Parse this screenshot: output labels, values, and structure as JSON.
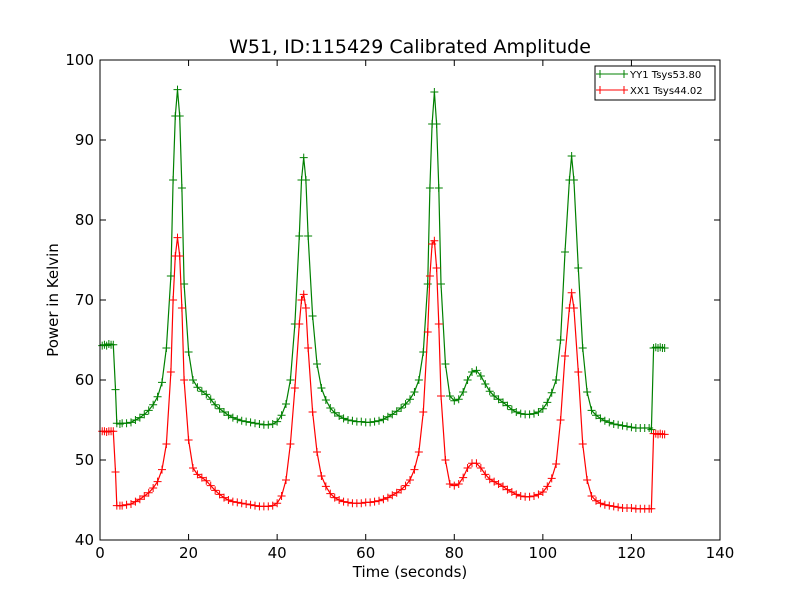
{
  "chart_data": {
    "type": "line",
    "title": "W51, ID:115429 Calibrated Amplitude",
    "xlabel": "Time (seconds)",
    "ylabel": "Power in Kelvin",
    "xlim": [
      0,
      140
    ],
    "ylim": [
      40,
      100
    ],
    "xticks": [
      "0",
      "20",
      "40",
      "60",
      "80",
      "100",
      "120",
      "140"
    ],
    "yticks": [
      "40",
      "50",
      "60",
      "70",
      "80",
      "90",
      "100"
    ],
    "grid": false,
    "legend_position": "top-right",
    "marker": "+",
    "series": [
      {
        "name": "YY1 Tsys53.80",
        "color": "#008000",
        "points": [
          [
            0.5,
            64.3
          ],
          [
            1,
            64.4
          ],
          [
            1.5,
            64.3
          ],
          [
            2,
            64.5
          ],
          [
            2.5,
            64.4
          ],
          [
            3,
            64.4
          ],
          [
            3.5,
            58.8
          ],
          [
            3.8,
            54.6
          ],
          [
            4.5,
            54.5
          ],
          [
            5,
            54.6
          ],
          [
            6,
            54.6
          ],
          [
            7,
            54.7
          ],
          [
            8,
            55.0
          ],
          [
            9,
            55.3
          ],
          [
            10,
            55.7
          ],
          [
            11,
            56.2
          ],
          [
            12,
            56.9
          ],
          [
            13,
            57.9
          ],
          [
            14,
            59.7
          ],
          [
            15,
            64.0
          ],
          [
            16,
            73.0
          ],
          [
            16.5,
            85.0
          ],
          [
            17,
            93.0
          ],
          [
            17.5,
            96.3
          ],
          [
            18,
            93.0
          ],
          [
            18.5,
            84.0
          ],
          [
            19,
            72.0
          ],
          [
            20,
            63.5
          ],
          [
            21,
            60.0
          ],
          [
            22,
            59.1
          ],
          [
            23,
            58.6
          ],
          [
            24,
            58.2
          ],
          [
            25,
            57.6
          ],
          [
            26,
            56.9
          ],
          [
            27,
            56.4
          ],
          [
            28,
            56.0
          ],
          [
            29,
            55.6
          ],
          [
            30,
            55.3
          ],
          [
            31,
            55.1
          ],
          [
            32,
            54.9
          ],
          [
            33,
            54.8
          ],
          [
            34,
            54.7
          ],
          [
            35,
            54.6
          ],
          [
            36,
            54.5
          ],
          [
            37,
            54.4
          ],
          [
            38,
            54.4
          ],
          [
            39,
            54.5
          ],
          [
            40,
            54.8
          ],
          [
            41,
            55.6
          ],
          [
            42,
            57.0
          ],
          [
            43,
            60.0
          ],
          [
            44,
            67.0
          ],
          [
            45,
            78.0
          ],
          [
            45.5,
            85.0
          ],
          [
            46,
            87.8
          ],
          [
            46.5,
            85.0
          ],
          [
            47,
            78.0
          ],
          [
            48,
            68.0
          ],
          [
            49,
            62.0
          ],
          [
            50,
            59.0
          ],
          [
            51,
            57.5
          ],
          [
            52,
            56.5
          ],
          [
            53,
            55.9
          ],
          [
            54,
            55.5
          ],
          [
            55,
            55.2
          ],
          [
            56,
            55.0
          ],
          [
            57,
            54.9
          ],
          [
            58,
            54.8
          ],
          [
            59,
            54.8
          ],
          [
            60,
            54.7
          ],
          [
            61,
            54.7
          ],
          [
            62,
            54.8
          ],
          [
            63,
            54.9
          ],
          [
            64,
            55.1
          ],
          [
            65,
            55.4
          ],
          [
            66,
            55.7
          ],
          [
            67,
            56.1
          ],
          [
            68,
            56.5
          ],
          [
            69,
            57.0
          ],
          [
            70,
            57.6
          ],
          [
            71,
            58.5
          ],
          [
            72,
            60.0
          ],
          [
            73,
            63.5
          ],
          [
            74,
            72.0
          ],
          [
            74.5,
            84.0
          ],
          [
            75,
            92.0
          ],
          [
            75.5,
            96.0
          ],
          [
            76,
            92.0
          ],
          [
            76.5,
            84.0
          ],
          [
            77,
            72.0
          ],
          [
            78,
            62.0
          ],
          [
            79,
            58.0
          ],
          [
            80,
            57.4
          ],
          [
            81,
            57.6
          ],
          [
            82,
            58.5
          ],
          [
            83,
            60.0
          ],
          [
            84,
            61.0
          ],
          [
            85,
            61.2
          ],
          [
            86,
            60.5
          ],
          [
            87,
            59.5
          ],
          [
            88,
            58.6
          ],
          [
            89,
            58.0
          ],
          [
            90,
            57.6
          ],
          [
            91,
            57.2
          ],
          [
            92,
            56.8
          ],
          [
            93,
            56.3
          ],
          [
            94,
            56.0
          ],
          [
            95,
            55.8
          ],
          [
            96,
            55.7
          ],
          [
            97,
            55.7
          ],
          [
            98,
            55.8
          ],
          [
            99,
            56.0
          ],
          [
            100,
            56.4
          ],
          [
            101,
            57.2
          ],
          [
            102,
            58.4
          ],
          [
            103,
            60.0
          ],
          [
            104,
            65.0
          ],
          [
            105,
            76.0
          ],
          [
            106,
            85.0
          ],
          [
            106.5,
            88.0
          ],
          [
            107,
            85.0
          ],
          [
            108,
            74.0
          ],
          [
            109,
            64.0
          ],
          [
            110,
            58.5
          ],
          [
            111,
            56.2
          ],
          [
            112,
            55.6
          ],
          [
            113,
            55.2
          ],
          [
            114,
            54.9
          ],
          [
            115,
            54.7
          ],
          [
            116,
            54.5
          ],
          [
            117,
            54.4
          ],
          [
            118,
            54.3
          ],
          [
            119,
            54.2
          ],
          [
            120,
            54.1
          ],
          [
            121,
            54.0
          ],
          [
            122,
            54.0
          ],
          [
            123,
            54.0
          ],
          [
            124,
            54.0
          ],
          [
            124.5,
            53.8
          ],
          [
            125,
            64.0
          ],
          [
            125.5,
            64.1
          ],
          [
            126,
            64.0
          ],
          [
            126.5,
            64.1
          ],
          [
            127,
            64.0
          ],
          [
            127.5,
            64.0
          ]
        ]
      },
      {
        "name": "XX1 Tsys44.02",
        "color": "#ff0000",
        "points": [
          [
            0.5,
            53.6
          ],
          [
            1,
            53.6
          ],
          [
            1.5,
            53.5
          ],
          [
            2,
            53.6
          ],
          [
            2.5,
            53.6
          ],
          [
            3,
            53.6
          ],
          [
            3.5,
            48.5
          ],
          [
            3.8,
            44.3
          ],
          [
            4.5,
            44.3
          ],
          [
            5,
            44.3
          ],
          [
            6,
            44.4
          ],
          [
            7,
            44.5
          ],
          [
            8,
            44.8
          ],
          [
            9,
            45.1
          ],
          [
            10,
            45.5
          ],
          [
            11,
            45.9
          ],
          [
            12,
            46.5
          ],
          [
            13,
            47.3
          ],
          [
            14,
            48.8
          ],
          [
            15,
            52.0
          ],
          [
            16,
            61.0
          ],
          [
            16.5,
            70.0
          ],
          [
            17,
            75.5
          ],
          [
            17.5,
            77.8
          ],
          [
            18,
            75.5
          ],
          [
            18.5,
            69.0
          ],
          [
            19,
            60.0
          ],
          [
            20,
            52.5
          ],
          [
            21,
            49.0
          ],
          [
            22,
            48.2
          ],
          [
            23,
            47.8
          ],
          [
            24,
            47.4
          ],
          [
            25,
            46.8
          ],
          [
            26,
            46.2
          ],
          [
            27,
            45.7
          ],
          [
            28,
            45.3
          ],
          [
            29,
            45.0
          ],
          [
            30,
            44.8
          ],
          [
            31,
            44.7
          ],
          [
            32,
            44.6
          ],
          [
            33,
            44.5
          ],
          [
            34,
            44.4
          ],
          [
            35,
            44.3
          ],
          [
            36,
            44.2
          ],
          [
            37,
            44.2
          ],
          [
            38,
            44.2
          ],
          [
            39,
            44.3
          ],
          [
            40,
            44.6
          ],
          [
            41,
            45.5
          ],
          [
            42,
            47.5
          ],
          [
            43,
            52.0
          ],
          [
            44,
            59.0
          ],
          [
            45,
            67.0
          ],
          [
            45.5,
            70.0
          ],
          [
            46,
            70.7
          ],
          [
            46.5,
            69.0
          ],
          [
            47,
            64.0
          ],
          [
            48,
            56.0
          ],
          [
            49,
            51.0
          ],
          [
            50,
            48.0
          ],
          [
            51,
            46.7
          ],
          [
            52,
            45.8
          ],
          [
            53,
            45.3
          ],
          [
            54,
            45.0
          ],
          [
            55,
            44.8
          ],
          [
            56,
            44.7
          ],
          [
            57,
            44.6
          ],
          [
            58,
            44.6
          ],
          [
            59,
            44.6
          ],
          [
            60,
            44.7
          ],
          [
            61,
            44.7
          ],
          [
            62,
            44.8
          ],
          [
            63,
            44.9
          ],
          [
            64,
            45.1
          ],
          [
            65,
            45.3
          ],
          [
            66,
            45.6
          ],
          [
            67,
            45.9
          ],
          [
            68,
            46.3
          ],
          [
            69,
            46.8
          ],
          [
            70,
            47.5
          ],
          [
            71,
            48.8
          ],
          [
            72,
            51.0
          ],
          [
            73,
            56.0
          ],
          [
            74,
            66.0
          ],
          [
            74.5,
            73.0
          ],
          [
            75,
            77.0
          ],
          [
            75.5,
            77.4
          ],
          [
            76,
            74.0
          ],
          [
            76.5,
            67.0
          ],
          [
            77,
            58.0
          ],
          [
            78,
            50.0
          ],
          [
            79,
            47.0
          ],
          [
            80,
            46.8
          ],
          [
            81,
            47.0
          ],
          [
            82,
            47.8
          ],
          [
            83,
            49.0
          ],
          [
            84,
            49.6
          ],
          [
            85,
            49.6
          ],
          [
            86,
            49.0
          ],
          [
            87,
            48.2
          ],
          [
            88,
            47.6
          ],
          [
            89,
            47.3
          ],
          [
            90,
            47.0
          ],
          [
            91,
            46.7
          ],
          [
            92,
            46.3
          ],
          [
            93,
            46.0
          ],
          [
            94,
            45.7
          ],
          [
            95,
            45.5
          ],
          [
            96,
            45.4
          ],
          [
            97,
            45.4
          ],
          [
            98,
            45.5
          ],
          [
            99,
            45.7
          ],
          [
            100,
            46.0
          ],
          [
            101,
            46.7
          ],
          [
            102,
            47.7
          ],
          [
            103,
            49.5
          ],
          [
            104,
            55.0
          ],
          [
            105,
            63.0
          ],
          [
            106,
            69.0
          ],
          [
            106.5,
            70.9
          ],
          [
            107,
            69.0
          ],
          [
            108,
            61.0
          ],
          [
            109,
            52.0
          ],
          [
            110,
            47.5
          ],
          [
            111,
            45.5
          ],
          [
            112,
            44.9
          ],
          [
            113,
            44.6
          ],
          [
            114,
            44.4
          ],
          [
            115,
            44.3
          ],
          [
            116,
            44.2
          ],
          [
            117,
            44.1
          ],
          [
            118,
            44.0
          ],
          [
            119,
            44.0
          ],
          [
            120,
            44.0
          ],
          [
            121,
            43.9
          ],
          [
            122,
            43.9
          ],
          [
            123,
            43.9
          ],
          [
            124,
            43.9
          ],
          [
            124.5,
            43.9
          ],
          [
            125,
            53.3
          ],
          [
            125.5,
            53.3
          ],
          [
            126,
            53.2
          ],
          [
            126.5,
            53.3
          ],
          [
            127,
            53.2
          ],
          [
            127.5,
            53.2
          ]
        ]
      }
    ]
  }
}
